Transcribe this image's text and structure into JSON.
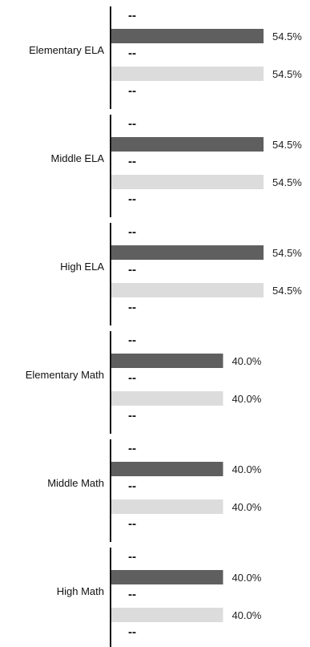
{
  "chart_data": {
    "type": "bar",
    "orientation": "horizontal",
    "categories": [
      "Elementary ELA",
      "Middle ELA",
      "High ELA",
      "Elementary Math",
      "Middle Math",
      "High Math"
    ],
    "series": [
      {
        "values": [
          54.5,
          54.5,
          54.5,
          40.0,
          40.0,
          40.0
        ],
        "color": "#5f5f5f"
      },
      {
        "values": [
          54.5,
          54.5,
          54.5,
          40.0,
          40.0,
          40.0
        ],
        "color": "#dcdcdc"
      }
    ],
    "value_labels": [
      [
        "54.5%",
        "54.5%"
      ],
      [
        "54.5%",
        "54.5%"
      ],
      [
        "54.5%",
        "54.5%"
      ],
      [
        "40.0%",
        "40.0%"
      ],
      [
        "40.0%",
        "40.0%"
      ],
      [
        "40.0%",
        "40.0%"
      ]
    ],
    "missing_marker": "--",
    "xlim": [
      0,
      54.5
    ],
    "grid": false,
    "legend": "none"
  }
}
